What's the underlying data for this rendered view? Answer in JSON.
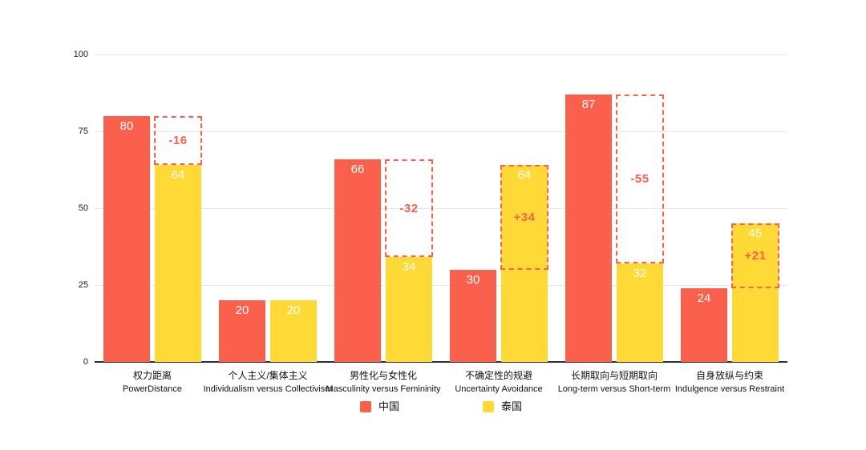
{
  "chart_data": {
    "type": "bar",
    "title": "",
    "grid": true,
    "legend_position": "bottom",
    "y_axis": {
      "min": 0,
      "max": 100,
      "ticks": [
        0,
        25,
        50,
        75,
        100
      ]
    },
    "categories": [
      {
        "label_zh": "权力距离",
        "label_en": "PowerDistance"
      },
      {
        "label_zh": "个人主义/集体主义",
        "label_en": "Individualism versus Collectivism"
      },
      {
        "label_zh": "男性化与女性化",
        "label_en": "Masculinity versus Femininity"
      },
      {
        "label_zh": "不确定性的规避",
        "label_en": "Uncertainty Avoidance"
      },
      {
        "label_zh": "长期取向与短期取向",
        "label_en": "Long-term versus Short-term"
      },
      {
        "label_zh": "自身放纵与约束",
        "label_en": "Indulgence versus Restraint"
      }
    ],
    "series": [
      {
        "name": "中国",
        "color": "#FB604D",
        "values": [
          80,
          20,
          66,
          30,
          87,
          24
        ]
      },
      {
        "name": "泰国",
        "color": "#FFD935",
        "values": [
          64,
          20,
          34,
          64,
          32,
          45
        ]
      }
    ],
    "difference_labels": [
      "-16",
      "",
      "-32",
      "+34",
      "-55",
      "+21"
    ],
    "difference_color": "#FB604D",
    "legend": [
      {
        "label": "中国",
        "color": "#FB604D"
      },
      {
        "label": "泰国",
        "color": "#FFD935"
      }
    ]
  },
  "colors": {
    "background": "#FFFFFF",
    "gridline": "#E8E8E8",
    "axis_line": "#2F2F2F",
    "bar_value_text": "#FFFFFF",
    "china_red": "#FB604D",
    "thailand_yellow": "#FFD935"
  }
}
